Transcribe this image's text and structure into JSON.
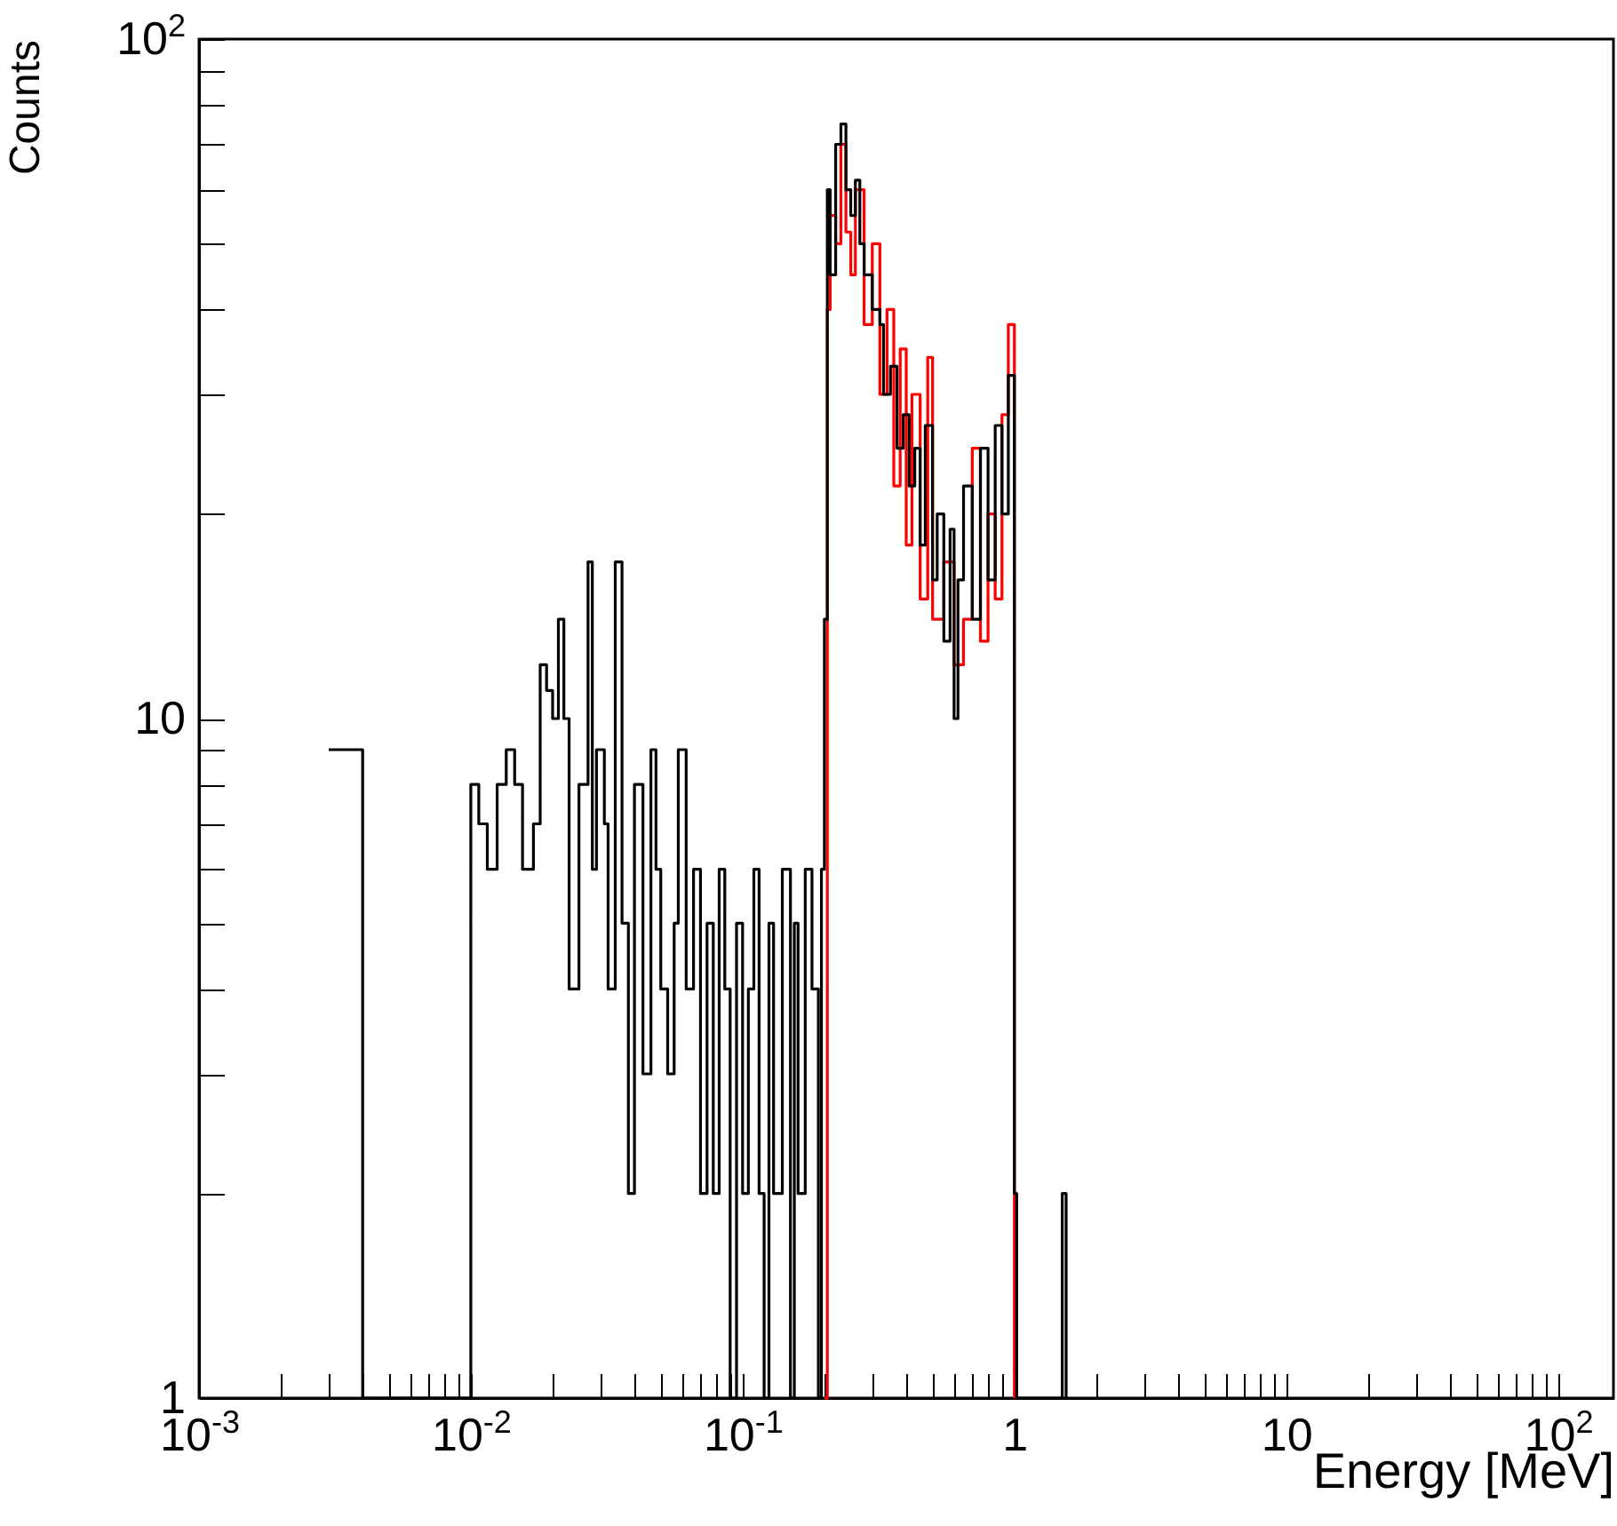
{
  "chart_data": {
    "type": "step",
    "xlabel": "Energy [MeV]",
    "ylabel": "Counts",
    "log": "xy",
    "xlim": [
      0.001,
      160
    ],
    "ylim": [
      1,
      100
    ],
    "xticks": [
      {
        "value": 0.001,
        "label": "10$^{-3}$"
      },
      {
        "value": 0.002,
        "label": null
      },
      {
        "value": 0.003,
        "label": null
      },
      {
        "value": 0.004,
        "label": null
      },
      {
        "value": 0.005,
        "label": null
      },
      {
        "value": 0.006,
        "label": null
      },
      {
        "value": 0.007,
        "label": null
      },
      {
        "value": 0.008,
        "label": null
      },
      {
        "value": 0.009,
        "label": null
      },
      {
        "value": 0.01,
        "label": "10$^{-2}$"
      },
      {
        "value": 0.02,
        "label": null
      },
      {
        "value": 0.03,
        "label": null
      },
      {
        "value": 0.04,
        "label": null
      },
      {
        "value": 0.05,
        "label": null
      },
      {
        "value": 0.06,
        "label": null
      },
      {
        "value": 0.07,
        "label": null
      },
      {
        "value": 0.08,
        "label": null
      },
      {
        "value": 0.09,
        "label": null
      },
      {
        "value": 0.1,
        "label": "10$^{-1}$"
      },
      {
        "value": 0.2,
        "label": null
      },
      {
        "value": 0.3,
        "label": null
      },
      {
        "value": 0.4,
        "label": null
      },
      {
        "value": 0.5,
        "label": null
      },
      {
        "value": 0.6,
        "label": null
      },
      {
        "value": 0.7,
        "label": null
      },
      {
        "value": 0.8,
        "label": null
      },
      {
        "value": 0.9,
        "label": null
      },
      1,
      {
        "value": 2,
        "label": null
      },
      {
        "value": 3,
        "label": null
      },
      {
        "value": 4,
        "label": null
      },
      {
        "value": 5,
        "label": null
      },
      {
        "value": 6,
        "label": null
      },
      {
        "value": 7,
        "label": null
      },
      {
        "value": 8,
        "label": null
      },
      {
        "value": 9,
        "label": null
      },
      10,
      {
        "value": 20,
        "label": null
      },
      {
        "value": 30,
        "label": null
      },
      {
        "value": 40,
        "label": null
      },
      {
        "value": 50,
        "label": null
      },
      {
        "value": 60,
        "label": null
      },
      {
        "value": 70,
        "label": null
      },
      {
        "value": 80,
        "label": null
      },
      {
        "value": 90,
        "label": null
      },
      {
        "value": 100,
        "label": "10$^{2}$"
      }
    ],
    "yticks": [
      1,
      {
        "value": 2,
        "label": null
      },
      {
        "value": 3,
        "label": null
      },
      {
        "value": 4,
        "label": null
      },
      {
        "value": 5,
        "label": null
      },
      {
        "value": 6,
        "label": null
      },
      {
        "value": 7,
        "label": null
      },
      {
        "value": 8,
        "label": null
      },
      {
        "value": 9,
        "label": null
      },
      10,
      {
        "value": 20,
        "label": null
      },
      {
        "value": 30,
        "label": null
      },
      {
        "value": 40,
        "label": null
      },
      {
        "value": 50,
        "label": null
      },
      {
        "value": 60,
        "label": null
      },
      {
        "value": 70,
        "label": null
      },
      {
        "value": 80,
        "label": null
      },
      {
        "value": 90,
        "label": null
      },
      {
        "value": 100,
        "label": "10$^{2}$"
      }
    ],
    "series": [
      {
        "color": "#ff0000",
        "x": [
          0.2,
          0.205,
          0.21,
          0.22,
          0.23,
          0.24,
          0.25,
          0.26,
          0.28,
          0.3,
          0.32,
          0.34,
          0.36,
          0.38,
          0.4,
          0.42,
          0.45,
          0.48,
          0.5,
          0.55,
          0.6,
          0.65,
          0.7,
          0.75,
          0.8,
          0.85,
          0.9,
          0.95,
          1.0
        ],
        "values": [
          1,
          40,
          55,
          50,
          70,
          52,
          45,
          60,
          38,
          50,
          30,
          40,
          22,
          35,
          18,
          30,
          15,
          34,
          14,
          17,
          12,
          14,
          25,
          13,
          20,
          15,
          28,
          38,
          1
        ]
      },
      {
        "color": "#000000",
        "x": [
          0.003,
          0.004,
          0.01,
          0.0107,
          0.0115,
          0.0125,
          0.0135,
          0.0145,
          0.0155,
          0.017,
          0.018,
          0.019,
          0.02,
          0.021,
          0.022,
          0.023,
          0.025,
          0.027,
          0.028,
          0.029,
          0.031,
          0.032,
          0.034,
          0.036,
          0.038,
          0.04,
          0.043,
          0.046,
          0.048,
          0.05,
          0.053,
          0.056,
          0.058,
          0.062,
          0.066,
          0.07,
          0.074,
          0.078,
          0.082,
          0.086,
          0.09,
          0.095,
          0.1,
          0.105,
          0.11,
          0.115,
          0.12,
          0.125,
          0.13,
          0.14,
          0.15,
          0.155,
          0.16,
          0.17,
          0.18,
          0.19,
          0.195,
          0.2,
          0.205,
          0.21,
          0.22,
          0.23,
          0.24,
          0.25,
          0.26,
          0.27,
          0.28,
          0.3,
          0.32,
          0.33,
          0.35,
          0.37,
          0.39,
          0.41,
          0.43,
          0.45,
          0.47,
          0.5,
          0.52,
          0.55,
          0.58,
          0.6,
          0.62,
          0.65,
          0.7,
          0.75,
          0.8,
          0.85,
          0.9,
          0.95,
          1.0,
          1.02,
          1.5,
          1.55
        ],
        "values": [
          9,
          1,
          8,
          7,
          6,
          8,
          9,
          8,
          6,
          7,
          12,
          11,
          10,
          14,
          10,
          4,
          8,
          17,
          6,
          9,
          7,
          4,
          17,
          5,
          2,
          8,
          3,
          9,
          6,
          4,
          3,
          5,
          9,
          4,
          6,
          2,
          5,
          2,
          6,
          4,
          1,
          5,
          2,
          4,
          6,
          2,
          1,
          5,
          2,
          6,
          1,
          5,
          2,
          6,
          4,
          1,
          6,
          14,
          60,
          45,
          70,
          75,
          60,
          55,
          62,
          50,
          45,
          40,
          38,
          30,
          33,
          25,
          28,
          22,
          25,
          18,
          27,
          16,
          20,
          13,
          19,
          10,
          16,
          22,
          14,
          25,
          16,
          27,
          20,
          32,
          2,
          1,
          2,
          1
        ]
      }
    ]
  }
}
